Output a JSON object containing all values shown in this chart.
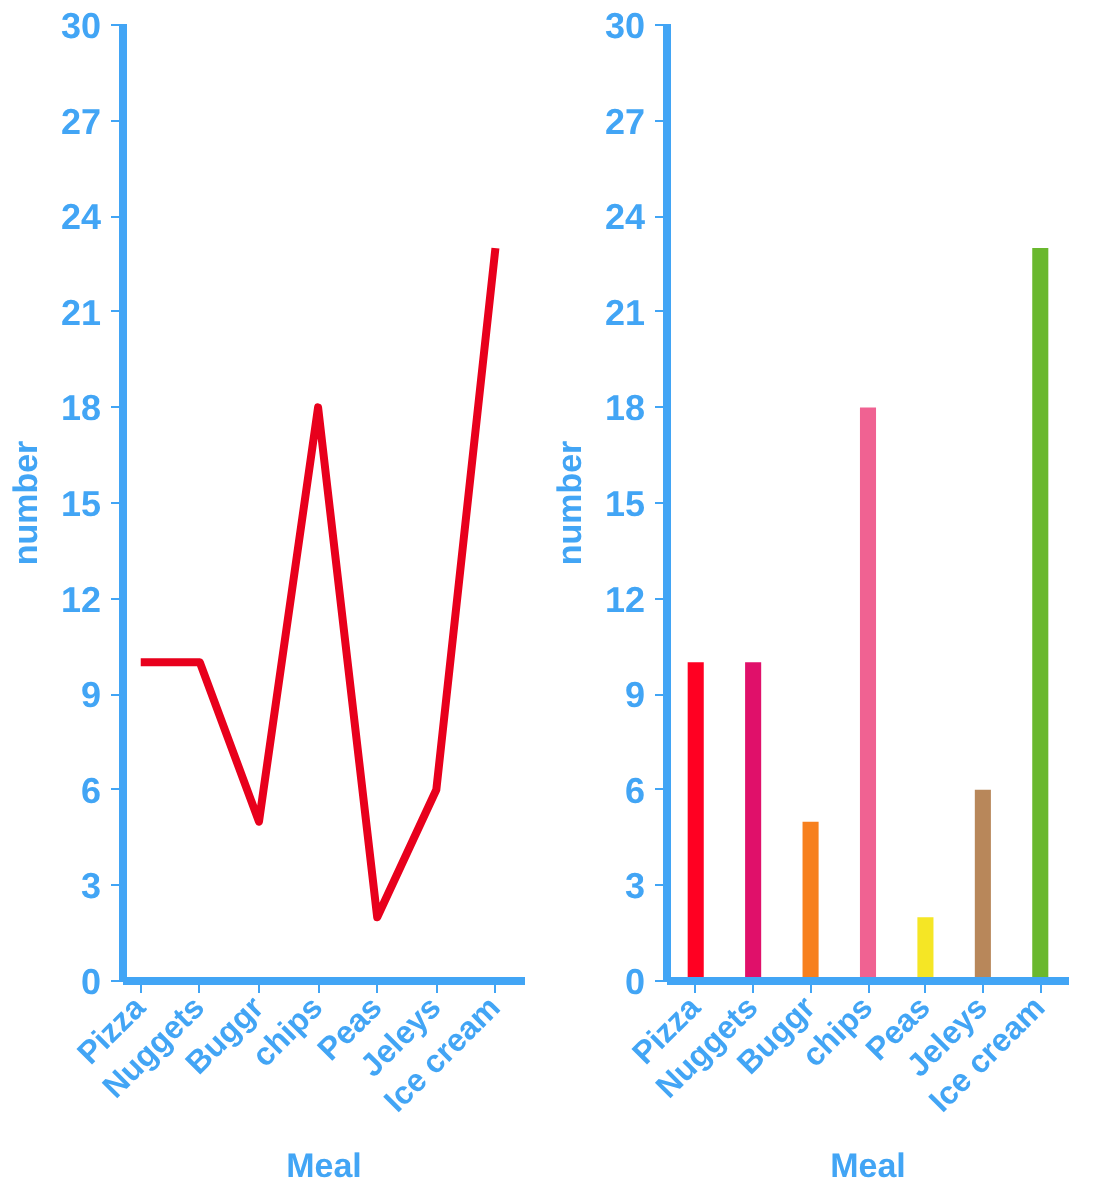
{
  "chart_data": [
    {
      "type": "line",
      "xlabel": "Meal",
      "ylabel": "number",
      "categories": [
        "Pizza",
        "Nuggets",
        "Buggr",
        "chips",
        "Peas",
        "Jeleys",
        "Ice cream"
      ],
      "series": [
        {
          "color": "#e8001c",
          "values": [
            10,
            10,
            5,
            18,
            2,
            6,
            23
          ]
        }
      ],
      "ylim": [
        0,
        30
      ],
      "yticks": [
        0,
        3,
        6,
        9,
        12,
        15,
        18,
        21,
        24,
        27,
        30
      ],
      "grid": false,
      "marker": "none",
      "line_style": "solid"
    },
    {
      "type": "bar",
      "xlabel": "Meal",
      "ylabel": "number",
      "categories": [
        "Pizza",
        "Nuggets",
        "Buggr",
        "chips",
        "Peas",
        "Jeleys",
        "Ice cream"
      ],
      "values": [
        10,
        10,
        5,
        18,
        2,
        6,
        23
      ],
      "colors": [
        "#ff0022",
        "#e0106a",
        "#f7801e",
        "#f06292",
        "#f5e625",
        "#b8875a",
        "#6ab82e"
      ],
      "ylim": [
        0,
        30
      ],
      "yticks": [
        0,
        3,
        6,
        9,
        12,
        15,
        18,
        21,
        24,
        27,
        30
      ],
      "grid": false
    }
  ]
}
